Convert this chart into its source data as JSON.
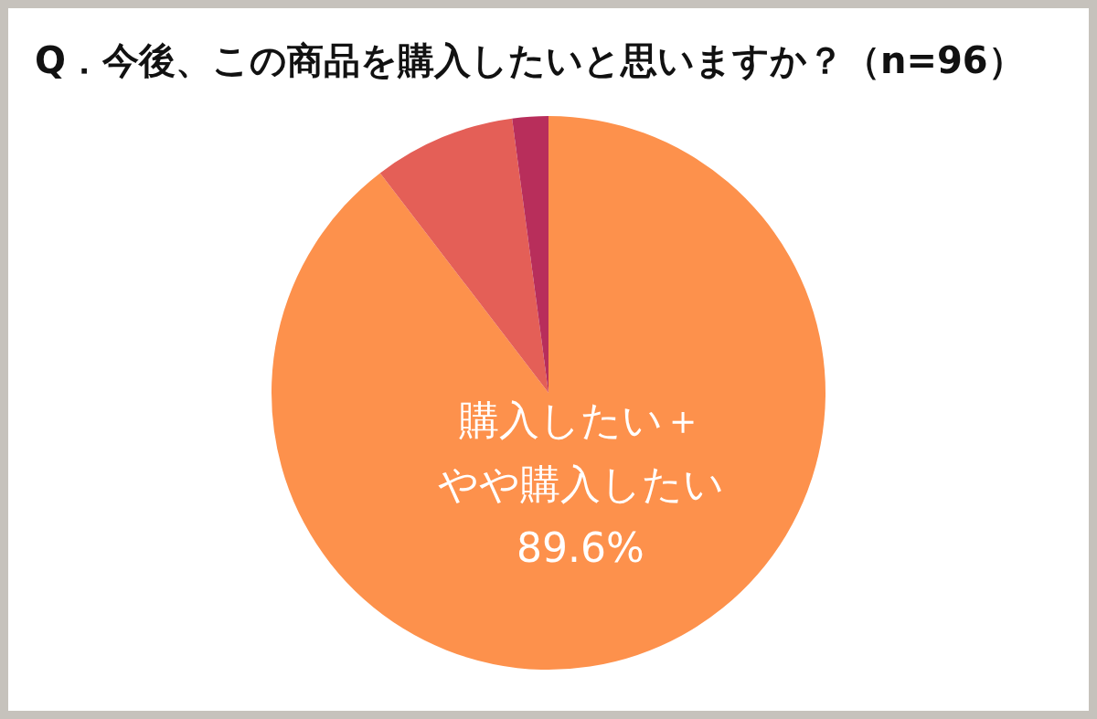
{
  "chart_data": {
    "type": "pie",
    "title": "Q．今後、この商品を購入したいと思いますか？（n=96）",
    "categories": [
      "購入したい＋やや購入したい",
      null,
      null
    ],
    "values": [
      89.6,
      8.3,
      2.1
    ],
    "colors": [
      "#fd914c",
      "#e45f57",
      "#b82e5b"
    ],
    "value_labels": [
      "89.6%",
      null,
      null
    ]
  }
}
